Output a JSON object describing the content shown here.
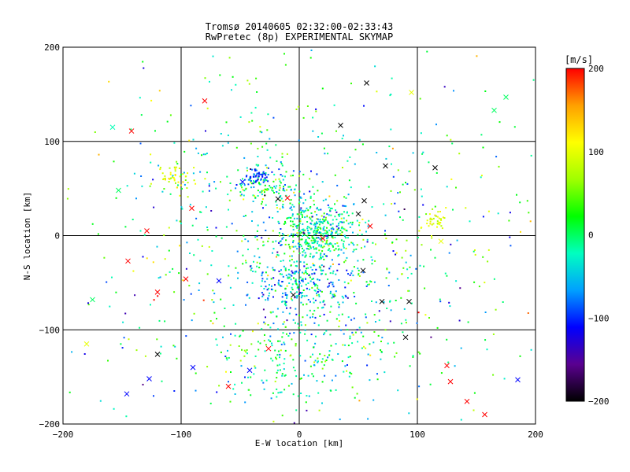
{
  "chart_data": {
    "type": "scatter",
    "title": "Tromsø 20140605 02:32:00-02:33:43",
    "subtitle": "RwPretec (8p) EXPERIMENTAL SKYMAP",
    "xlabel": "E-W location [km]",
    "ylabel": "N-S location [km]",
    "xlim": [
      -200,
      200
    ],
    "ylim": [
      -200,
      200
    ],
    "xticks": [
      -200,
      -100,
      0,
      100,
      200
    ],
    "yticks": [
      -200,
      -100,
      0,
      100,
      200
    ],
    "grid": true,
    "colorbar": {
      "label": "[m/s]",
      "range": [
        -200,
        200
      ],
      "ticks": [
        200,
        100,
        0,
        -100,
        -200
      ],
      "colormap": "rainbow",
      "stops": [
        "#000000",
        "#5a0090",
        "#0000ff",
        "#00a0ff",
        "#00ffc0",
        "#00ff00",
        "#a0ff00",
        "#ffff00",
        "#ffa000",
        "#ff0000"
      ]
    },
    "markers": {
      "small": "dot",
      "large": "cross"
    },
    "clusters": [
      {
        "cx": 15,
        "cy": 5,
        "sx": 18,
        "sy": 15,
        "n": 420,
        "v": -10,
        "vs": 45
      },
      {
        "cx": 0,
        "cy": -50,
        "sx": 22,
        "sy": 15,
        "n": 260,
        "v": -45,
        "vs": 45
      },
      {
        "cx": -30,
        "cy": 55,
        "sx": 14,
        "sy": 10,
        "n": 120,
        "v": -10,
        "vs": 55
      },
      {
        "cx": -35,
        "cy": 63,
        "sx": 6,
        "sy": 4,
        "n": 45,
        "v": -95,
        "vs": 20
      },
      {
        "cx": -105,
        "cy": 62,
        "sx": 8,
        "sy": 6,
        "n": 45,
        "v": 100,
        "vs": 20
      },
      {
        "cx": 115,
        "cy": 15,
        "sx": 5,
        "sy": 8,
        "n": 40,
        "v": 100,
        "vs": 18
      },
      {
        "cx": -20,
        "cy": -130,
        "sx": 25,
        "sy": 25,
        "n": 140,
        "v": -10,
        "vs": 45
      },
      {
        "cx": 40,
        "cy": -110,
        "sx": 30,
        "sy": 40,
        "n": 120,
        "v": -15,
        "vs": 50
      },
      {
        "cx": 0,
        "cy": -10,
        "sx": 90,
        "sy": 90,
        "n": 600,
        "v": -5,
        "vs": 60
      },
      {
        "cx": 0,
        "cy": 0,
        "sx": 160,
        "sy": 160,
        "n": 220,
        "v": 0,
        "vs": 90
      }
    ],
    "crosses": [
      {
        "x": 57,
        "y": 162,
        "v": -200
      },
      {
        "x": -142,
        "y": 111,
        "v": 200
      },
      {
        "x": -80,
        "y": 143,
        "v": 200
      },
      {
        "x": -158,
        "y": 115,
        "v": -20
      },
      {
        "x": 35,
        "y": 117,
        "v": -200
      },
      {
        "x": 115,
        "y": 72,
        "v": -200
      },
      {
        "x": 73,
        "y": 74,
        "v": -200
      },
      {
        "x": -91,
        "y": 29,
        "v": 200
      },
      {
        "x": -129,
        "y": 5,
        "v": 200
      },
      {
        "x": -145,
        "y": -27,
        "v": 200
      },
      {
        "x": -120,
        "y": -60,
        "v": 200
      },
      {
        "x": -96,
        "y": -46,
        "v": 200
      },
      {
        "x": -120,
        "y": -126,
        "v": -200
      },
      {
        "x": -146,
        "y": -168,
        "v": -110
      },
      {
        "x": -26,
        "y": -120,
        "v": 200
      },
      {
        "x": 70,
        "y": -70,
        "v": -200
      },
      {
        "x": 93,
        "y": -70,
        "v": -200
      },
      {
        "x": 125,
        "y": -138,
        "v": 200
      },
      {
        "x": 128,
        "y": -155,
        "v": 200
      },
      {
        "x": 142,
        "y": -176,
        "v": 200
      },
      {
        "x": 185,
        "y": -153,
        "v": -110
      },
      {
        "x": 157,
        "y": -190,
        "v": 200
      },
      {
        "x": -175,
        "y": -68,
        "v": 0
      },
      {
        "x": -180,
        "y": -115,
        "v": 100
      },
      {
        "x": 120,
        "y": -6,
        "v": 100
      },
      {
        "x": 50,
        "y": 23,
        "v": -200
      },
      {
        "x": 60,
        "y": 10,
        "v": 200
      },
      {
        "x": -68,
        "y": -48,
        "v": -110
      },
      {
        "x": -48,
        "y": 57,
        "v": -110
      },
      {
        "x": -18,
        "y": 39,
        "v": -200
      },
      {
        "x": 20,
        "y": -3,
        "v": 200
      },
      {
        "x": -5,
        "y": -63,
        "v": -200
      },
      {
        "x": -60,
        "y": -160,
        "v": 200
      },
      {
        "x": 90,
        "y": -108,
        "v": -200
      },
      {
        "x": -42,
        "y": -143,
        "v": -110
      },
      {
        "x": 54,
        "y": -37,
        "v": -200
      },
      {
        "x": 55,
        "y": 37,
        "v": -200
      },
      {
        "x": -153,
        "y": 48,
        "v": 0
      },
      {
        "x": 165,
        "y": 133,
        "v": 0
      },
      {
        "x": 175,
        "y": 147,
        "v": 0
      },
      {
        "x": -127,
        "y": -152,
        "v": -110
      },
      {
        "x": -90,
        "y": -140,
        "v": -110
      },
      {
        "x": 95,
        "y": 152,
        "v": 100
      },
      {
        "x": -10,
        "y": 40,
        "v": 200
      }
    ]
  }
}
